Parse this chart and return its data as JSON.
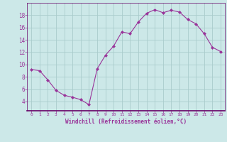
{
  "x": [
    0,
    1,
    2,
    3,
    4,
    5,
    6,
    7,
    8,
    9,
    10,
    11,
    12,
    13,
    14,
    15,
    16,
    17,
    18,
    19,
    20,
    21,
    22,
    23
  ],
  "y": [
    9.2,
    9.0,
    7.5,
    5.8,
    5.0,
    4.7,
    4.3,
    3.5,
    9.3,
    11.5,
    13.0,
    15.3,
    15.0,
    16.9,
    18.3,
    18.9,
    18.4,
    18.8,
    18.5,
    17.3,
    16.6,
    15.0,
    12.8,
    12.1
  ],
  "line_color": "#993399",
  "marker": "D",
  "marker_size": 2.0,
  "bg_color": "#cce8e8",
  "grid_color": "#aacccc",
  "xlabel": "Windchill (Refroidissement éolien,°C)",
  "xlabel_color": "#993399",
  "tick_color": "#993399",
  "label_color": "#993399",
  "ylim": [
    2.5,
    20
  ],
  "yticks": [
    4,
    6,
    8,
    10,
    12,
    14,
    16,
    18
  ],
  "xlim": [
    -0.5,
    23.5
  ],
  "xticks": [
    0,
    1,
    2,
    3,
    4,
    5,
    6,
    7,
    8,
    9,
    10,
    11,
    12,
    13,
    14,
    15,
    16,
    17,
    18,
    19,
    20,
    21,
    22,
    23
  ],
  "spine_color": "#7777aa",
  "bottom_line_color": "#660066"
}
